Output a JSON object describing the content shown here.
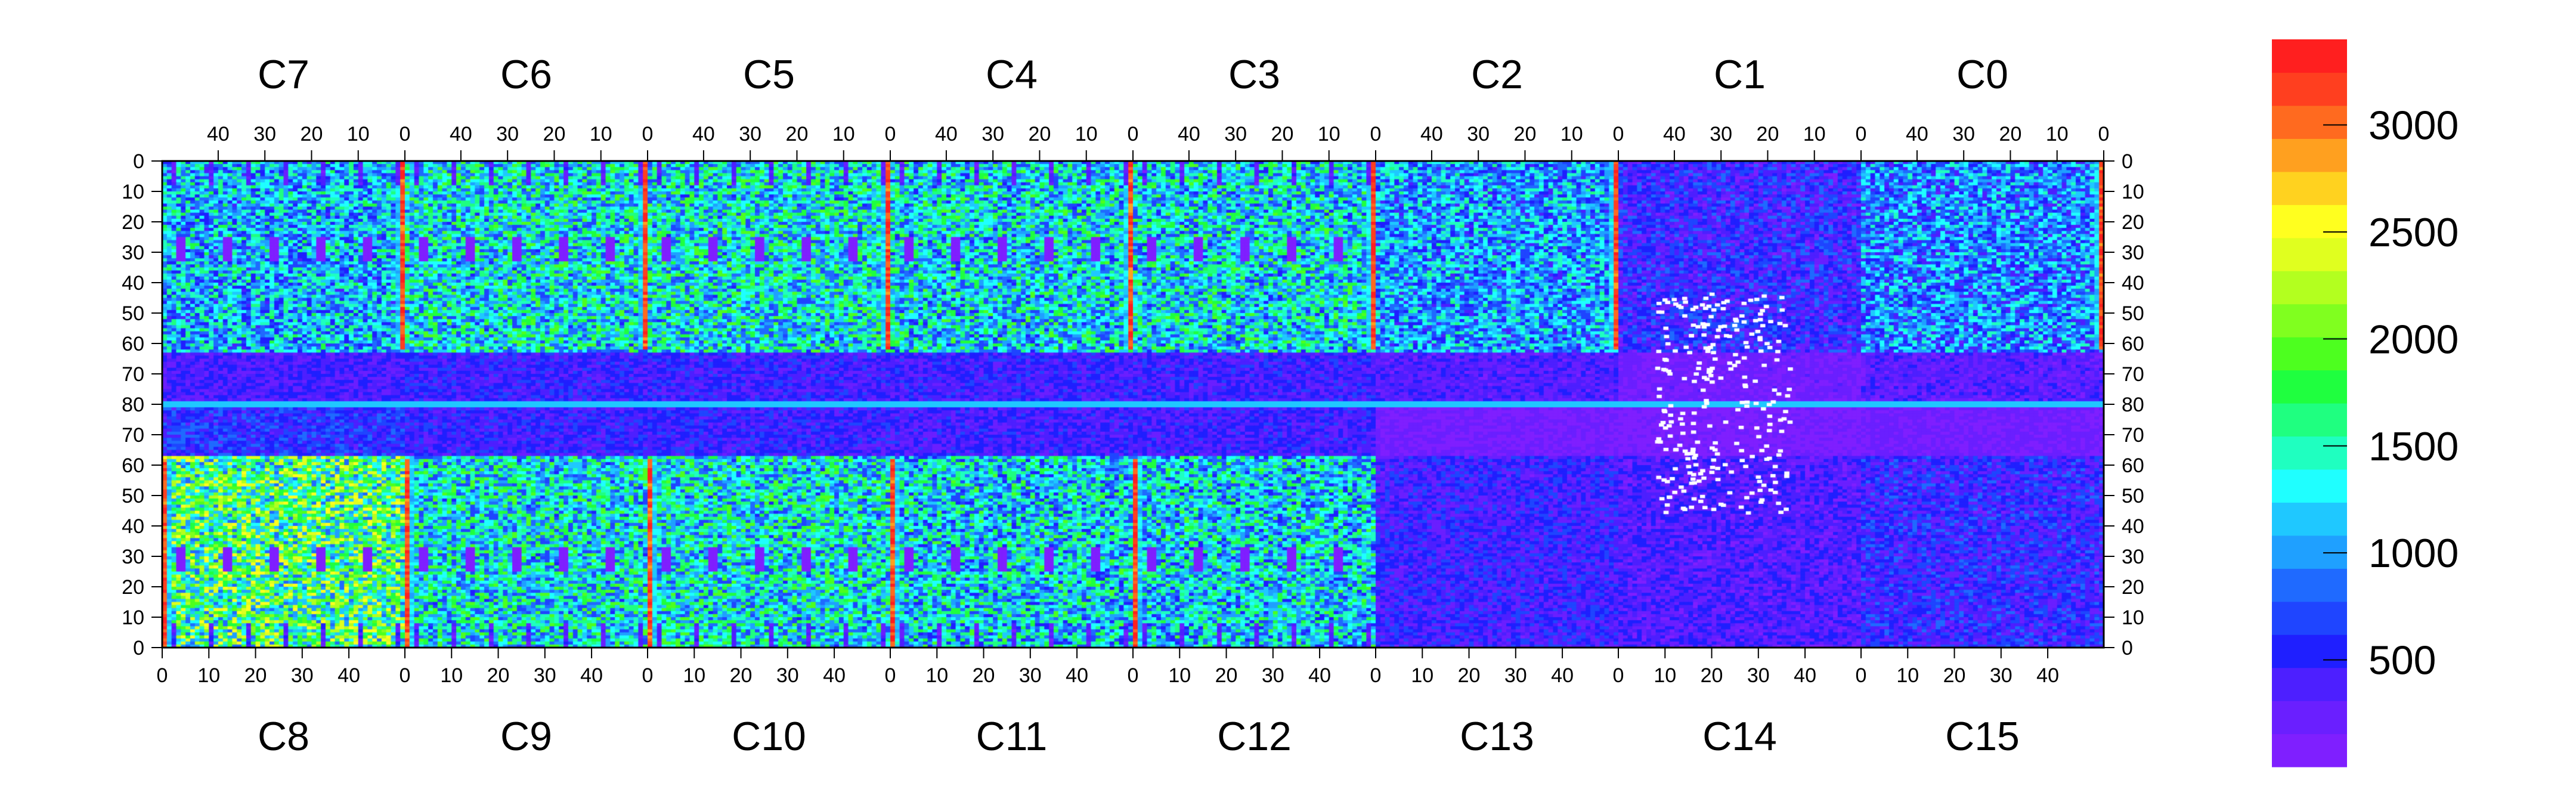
{
  "chart_data": {
    "type": "heatmap",
    "title": "",
    "xlabel": "",
    "ylabel": "",
    "top_chip_labels": [
      "C7",
      "C6",
      "C5",
      "C4",
      "C3",
      "C2",
      "C1",
      "C0"
    ],
    "bottom_chip_labels": [
      "C8",
      "C9",
      "C10",
      "C11",
      "C12",
      "C13",
      "C14",
      "C15"
    ],
    "top_x_tick_labels": [
      "40",
      "30",
      "20",
      "10",
      "0"
    ],
    "bottom_x_tick_labels": [
      "0",
      "10",
      "20",
      "30",
      "40"
    ],
    "left_y_tick_labels": [
      "0",
      "10",
      "20",
      "30",
      "40",
      "50",
      "60",
      "70",
      "80",
      "70",
      "60",
      "50",
      "40",
      "30",
      "20",
      "10",
      "0"
    ],
    "right_y_tick_labels": [
      "0",
      "10",
      "20",
      "30",
      "40",
      "50",
      "60",
      "70",
      "80",
      "70",
      "60",
      "50",
      "40",
      "30",
      "20",
      "10",
      "0"
    ],
    "chip_columns": 52,
    "chip_rows": 80,
    "zlim": [
      0,
      3400
    ],
    "colorbar_ticks": [
      500,
      1000,
      1500,
      2000,
      2500,
      3000
    ],
    "colorbar_tick_labels": [
      "500",
      "1000",
      "1500",
      "2000",
      "2500",
      "3000"
    ],
    "palette": [
      "#7f1fff",
      "#6a1fff",
      "#4d1fff",
      "#1f1fff",
      "#1f45ff",
      "#1f6aff",
      "#1fa0ff",
      "#1fc8ff",
      "#1fffff",
      "#1fffc0",
      "#1fff80",
      "#1fff3f",
      "#4dff1f",
      "#80ff1f",
      "#b3ff1f",
      "#e0ff1f",
      "#ffff1f",
      "#ffd21f",
      "#ffa01f",
      "#ff6a1f",
      "#ff3f1f",
      "#ff1f1f"
    ],
    "dead_pixel_color": "#ffffff",
    "chips": [
      {
        "name": "C7",
        "mean": 1100,
        "spread": 650
      },
      {
        "name": "C6",
        "mean": 1300,
        "spread": 700
      },
      {
        "name": "C5",
        "mean": 1300,
        "spread": 700
      },
      {
        "name": "C4",
        "mean": 1250,
        "spread": 700
      },
      {
        "name": "C3",
        "mean": 1250,
        "spread": 700
      },
      {
        "name": "C2",
        "mean": 1000,
        "spread": 600
      },
      {
        "name": "C1",
        "mean": 500,
        "spread": 400
      },
      {
        "name": "C0",
        "mean": 900,
        "spread": 600
      },
      {
        "name": "C8",
        "mean": 1700,
        "spread": 900
      },
      {
        "name": "C9",
        "mean": 1300,
        "spread": 700
      },
      {
        "name": "C10",
        "mean": 1300,
        "spread": 700
      },
      {
        "name": "C11",
        "mean": 1200,
        "spread": 700
      },
      {
        "name": "C12",
        "mean": 1200,
        "spread": 700
      },
      {
        "name": "C13",
        "mean": 450,
        "spread": 300
      },
      {
        "name": "C14",
        "mean": 350,
        "spread": 250
      },
      {
        "name": "C15",
        "mean": 500,
        "spread": 350
      }
    ],
    "hot_columns_note_values": [
      3200
    ],
    "grid": false,
    "colorbar": "right"
  }
}
